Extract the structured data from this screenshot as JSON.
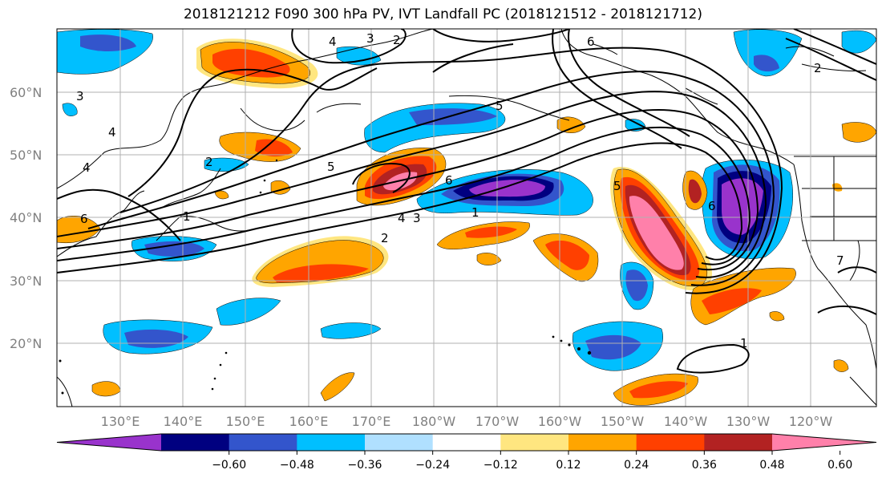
{
  "title": "2018121212 F090 300 hPa PV, IVT Landfall PC (2018121512 - 2018121712)",
  "lat_ticks": [
    "60°N",
    "50°N",
    "40°N",
    "30°N",
    "20°N"
  ],
  "lon_ticks": [
    "130°E",
    "140°E",
    "150°E",
    "160°E",
    "170°E",
    "180°W",
    "170°W",
    "160°W",
    "150°W",
    "140°W",
    "130°W",
    "120°W"
  ],
  "colorbar": {
    "ticks": [
      "−0.60",
      "−0.48",
      "−0.36",
      "−0.24",
      "−0.12",
      "0.12",
      "0.24",
      "0.36",
      "0.48",
      "0.60"
    ],
    "colors": [
      "#9933cc",
      "#000080",
      "#3355cc",
      "#00bfff",
      "#b0e0ff",
      "#ffffff",
      "#ffe680",
      "#ffa500",
      "#ff4000",
      "#b22222",
      "#ff80aa"
    ]
  },
  "contour_labels": [
    "5",
    "6",
    "4",
    "3",
    "2",
    "1",
    "6",
    "5",
    "4",
    "3",
    "2",
    "6",
    "5",
    "1",
    "2",
    "4",
    "6",
    "3",
    "2",
    "4",
    "1",
    "7"
  ]
}
